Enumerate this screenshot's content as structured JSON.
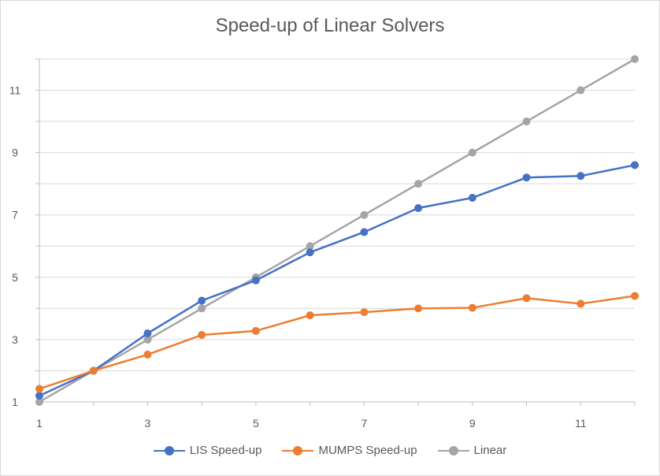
{
  "chart_data": {
    "type": "line",
    "title": "Speed-up of Linear Solvers",
    "xlabel": "",
    "ylabel": "",
    "x": [
      1,
      2,
      3,
      4,
      5,
      6,
      7,
      8,
      9,
      10,
      11,
      12
    ],
    "xlim": [
      1,
      12
    ],
    "ylim": [
      1,
      12
    ],
    "x_ticks": [
      1,
      3,
      5,
      7,
      9,
      11
    ],
    "y_ticks": [
      1,
      3,
      5,
      7,
      9,
      11
    ],
    "grid": "horizontal",
    "legend_position": "bottom",
    "series": [
      {
        "name": "LIS Speed-up",
        "color": "#4472c4",
        "values": [
          1.2,
          2.0,
          3.2,
          4.25,
          4.9,
          5.8,
          6.45,
          7.22,
          7.55,
          8.2,
          8.25,
          8.6
        ]
      },
      {
        "name": "MUMPS Speed-up",
        "color": "#ed7d31",
        "values": [
          1.42,
          2.0,
          2.52,
          3.15,
          3.28,
          3.78,
          3.88,
          4.0,
          4.02,
          4.33,
          4.15,
          4.4
        ]
      },
      {
        "name": "Linear",
        "color": "#a5a5a5",
        "values": [
          1,
          2,
          3,
          4,
          5,
          6,
          7,
          8,
          9,
          10,
          11,
          12
        ]
      }
    ]
  }
}
